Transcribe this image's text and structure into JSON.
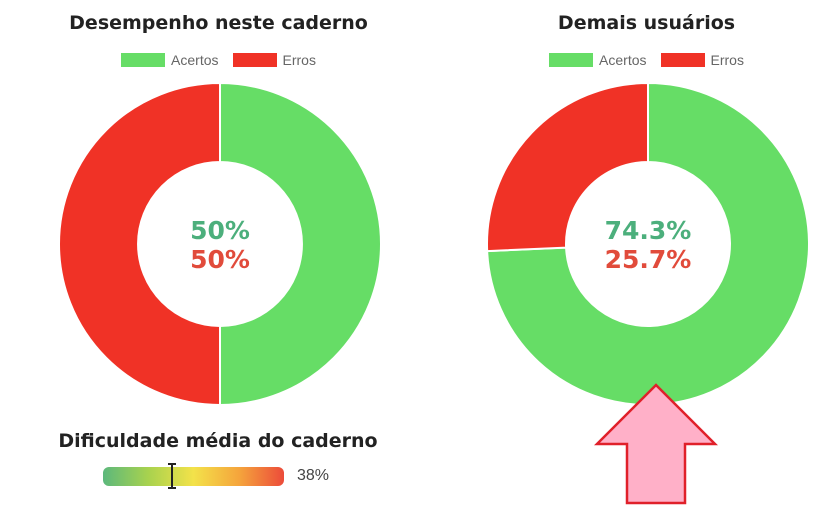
{
  "chart_data": [
    {
      "type": "pie",
      "title": "Desempenho neste caderno",
      "categories": [
        "Acertos",
        "Erros"
      ],
      "values": [
        50,
        50
      ],
      "labels": [
        "50%",
        "50%"
      ],
      "legend": "top"
    },
    {
      "type": "pie",
      "title": "Demais usuários",
      "categories": [
        "Acertos",
        "Erros"
      ],
      "values": [
        74.3,
        25.7
      ],
      "labels": [
        "74.3%",
        "25.7%"
      ],
      "legend": "top"
    }
  ],
  "colors": {
    "acertos": "#66dd66",
    "erros": "#f03226",
    "acertos_text": "#4caf7c",
    "erros_text": "#e14b3b",
    "arrow_fill": "#ffb0c8",
    "arrow_stroke": "#e0202a"
  },
  "difficulty": {
    "title": "Dificuldade média do caderno",
    "value": 38,
    "value_label": "38%"
  }
}
